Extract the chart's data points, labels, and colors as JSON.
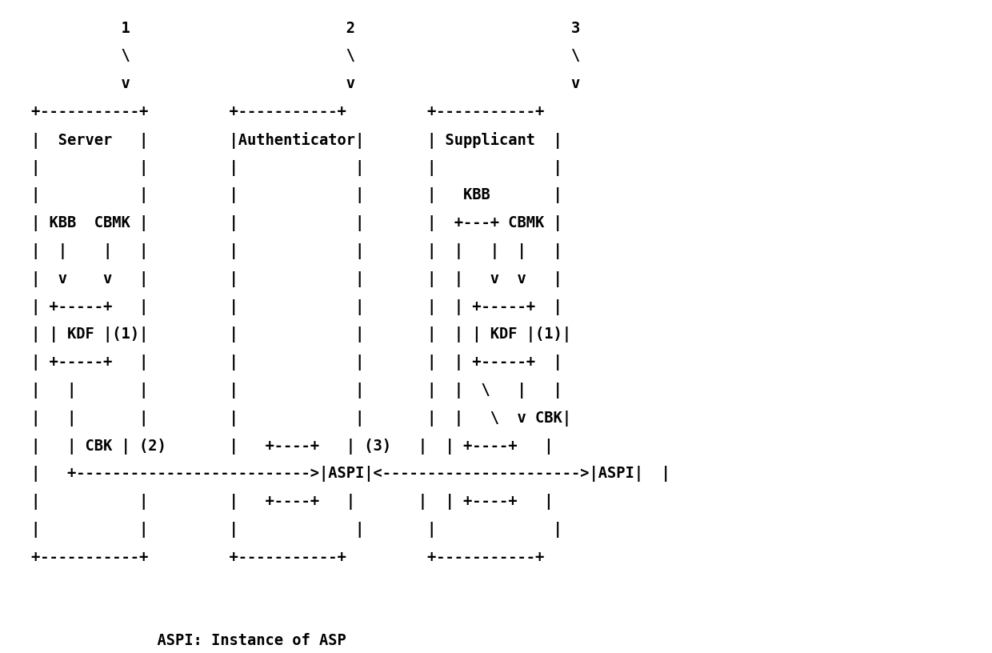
{
  "caption": "ASPI: Instance of ASP",
  "background_color": "#ffffff",
  "text_color": "#000000",
  "fig_width": 12.4,
  "fig_height": 8.16,
  "fontsize": 13.5,
  "lines": [
    "          1                        2                        3         ",
    "          \\                        \\                        \\         ",
    "          v                        v                        v         ",
    "+-----------+         +-----------+         +-----------+",
    "|  Server   |         |Authenticator|       | Supplicant  |",
    "|           |         |             |       |             |",
    "|           |         |             |       |  KBB        |",
    "| KBB  CBMK |         |             |       | +---+  CBMK |",
    "|  |    |   |         |             |       | |   |   |   |",
    "|  v    v   |         |             |       | |   v   v   |",
    "| +-----+   |         |             |       | | +-----+   |",
    "| | KDF |(1)|         |             |       | | | KDF |(1)|",
    "| +-----+   |         |             |       | | +-----+   |",
    "|   |       |         |             |       | |  \\    |   |",
    "|   |       |         |             |       | |   \\   v CBK|",
    "|   | CBK | (2)   |   +----+   | (3)   |  +----+   |",
    "|   +----------------------------->|ASPI|<------------------------->|ASPI|  |",
    "|           |         |   +----+   |       | |  +----+   |",
    "|           |         |             |       | |           |",
    "+-----------+         +-----------+         +-----------+"
  ]
}
